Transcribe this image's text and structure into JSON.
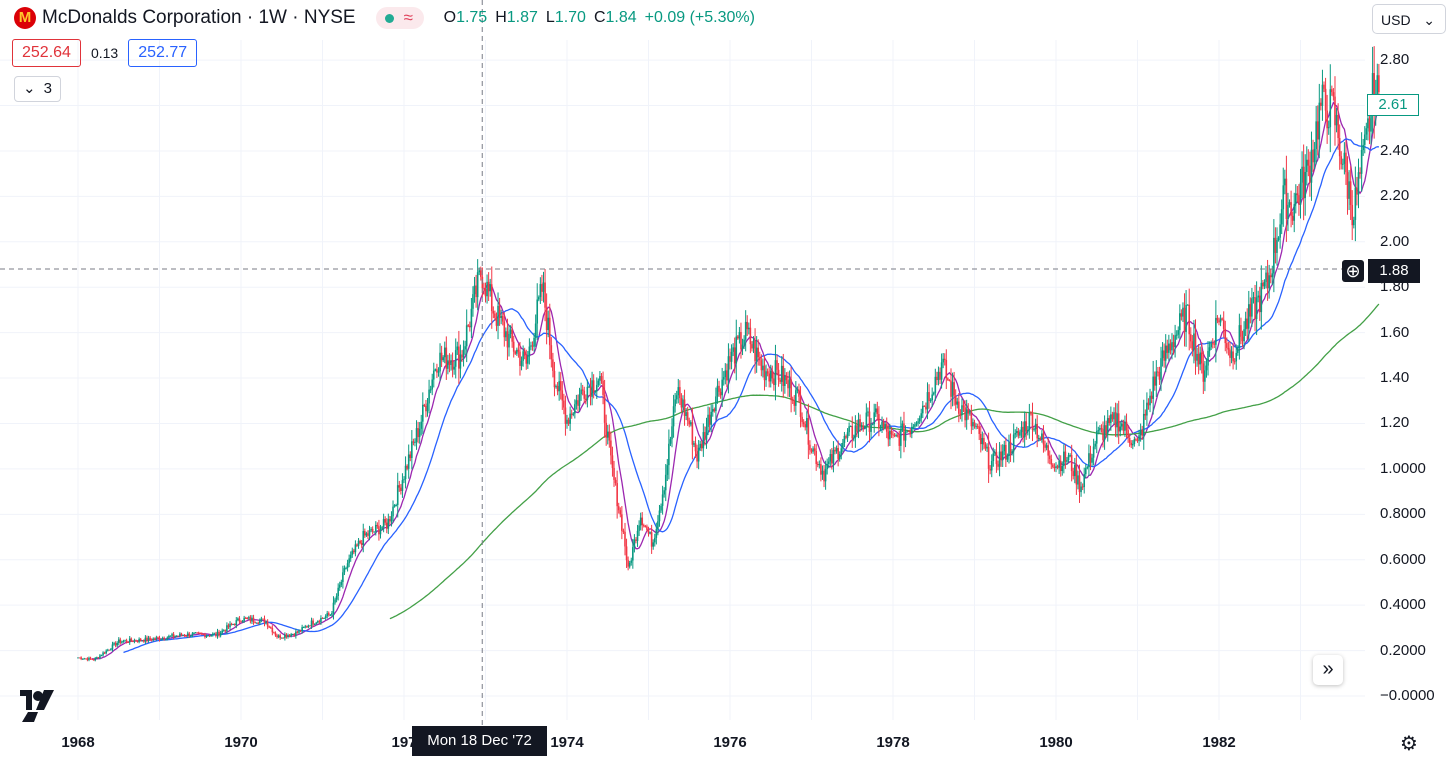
{
  "header": {
    "title": "McDonalds Corporation · 1W · NYSE",
    "ohlc": [
      {
        "k": "O",
        "v": "1.75"
      },
      {
        "k": "H",
        "v": "1.87"
      },
      {
        "k": "L",
        "v": "1.70"
      },
      {
        "k": "C",
        "v": "1.84"
      }
    ],
    "change": "+0.09 (+5.30%)",
    "currency": "USD",
    "indicator_box_1": "252.64",
    "indicator_value_mid": "0.13",
    "indicator_box_2": "252.77",
    "collapsed_count": "3"
  },
  "badges": {
    "current_price": "2.61",
    "crosshair_price": "1.88",
    "crosshair_date": "Mon 18 Dec '72"
  },
  "colors": {
    "up": "#089981",
    "down": "#f23645",
    "ma_fast": "#9c27b0",
    "ma_mid": "#2962ff",
    "ma_slow": "#43a047"
  },
  "chart_data": {
    "type": "candlestick",
    "y_ticks": [
      "2.80",
      "2.60",
      "2.40",
      "2.20",
      "2.00",
      "1.80",
      "1.60",
      "1.40",
      "1.20",
      "1.0000",
      "0.8000",
      "0.6000",
      "0.4000",
      "0.2000",
      "−0.0000"
    ],
    "y_tick_values": [
      2.8,
      2.6,
      2.4,
      2.2,
      2.0,
      1.8,
      1.6,
      1.4,
      1.2,
      1.0,
      0.8,
      0.6,
      0.4,
      0.2,
      0.0
    ],
    "x_ticks": [
      "1968",
      "1970",
      "197",
      "1974",
      "1976",
      "1978",
      "1980",
      "1982"
    ],
    "x_tick_years": [
      1968.0,
      1970.0,
      1972.0,
      1974.0,
      1976.0,
      1978.0,
      1980.0,
      1982.0
    ],
    "ylim": [
      -0.05,
      2.85
    ],
    "xlim": [
      1967.05,
      1983.6
    ],
    "grid": true,
    "crosshair": {
      "x": 1972.96,
      "y": 1.88
    },
    "price_path": [
      [
        1968.0,
        0.17
      ],
      [
        1968.2,
        0.16
      ],
      [
        1968.5,
        0.24
      ],
      [
        1968.9,
        0.25
      ],
      [
        1969.3,
        0.27
      ],
      [
        1969.7,
        0.27
      ],
      [
        1970.0,
        0.34
      ],
      [
        1970.3,
        0.33
      ],
      [
        1970.45,
        0.26
      ],
      [
        1970.7,
        0.28
      ],
      [
        1970.85,
        0.32
      ],
      [
        1971.1,
        0.36
      ],
      [
        1971.3,
        0.58
      ],
      [
        1971.5,
        0.7
      ],
      [
        1971.8,
        0.76
      ],
      [
        1972.0,
        0.98
      ],
      [
        1972.2,
        1.2
      ],
      [
        1972.4,
        1.48
      ],
      [
        1972.7,
        1.5
      ],
      [
        1972.95,
        1.87
      ],
      [
        1973.1,
        1.7
      ],
      [
        1973.3,
        1.56
      ],
      [
        1973.5,
        1.46
      ],
      [
        1973.7,
        1.8
      ],
      [
        1973.85,
        1.4
      ],
      [
        1974.0,
        1.22
      ],
      [
        1974.2,
        1.35
      ],
      [
        1974.4,
        1.4
      ],
      [
        1974.55,
        1.0
      ],
      [
        1974.7,
        0.7
      ],
      [
        1974.75,
        0.55
      ],
      [
        1974.9,
        0.8
      ],
      [
        1975.05,
        0.67
      ],
      [
        1975.2,
        0.95
      ],
      [
        1975.35,
        1.35
      ],
      [
        1975.5,
        1.2
      ],
      [
        1975.6,
        1.05
      ],
      [
        1975.8,
        1.3
      ],
      [
        1976.0,
        1.48
      ],
      [
        1976.2,
        1.6
      ],
      [
        1976.4,
        1.44
      ],
      [
        1976.6,
        1.42
      ],
      [
        1976.85,
        1.3
      ],
      [
        1977.0,
        1.1
      ],
      [
        1977.15,
        0.98
      ],
      [
        1977.35,
        1.1
      ],
      [
        1977.6,
        1.2
      ],
      [
        1977.8,
        1.22
      ],
      [
        1978.0,
        1.12
      ],
      [
        1978.2,
        1.18
      ],
      [
        1978.4,
        1.3
      ],
      [
        1978.6,
        1.46
      ],
      [
        1978.75,
        1.32
      ],
      [
        1979.0,
        1.18
      ],
      [
        1979.2,
        1.02
      ],
      [
        1979.4,
        1.08
      ],
      [
        1979.7,
        1.23
      ],
      [
        1979.85,
        1.1
      ],
      [
        1980.0,
        1.02
      ],
      [
        1980.15,
        1.05
      ],
      [
        1980.3,
        0.92
      ],
      [
        1980.5,
        1.14
      ],
      [
        1980.75,
        1.22
      ],
      [
        1981.0,
        1.1
      ],
      [
        1981.2,
        1.38
      ],
      [
        1981.4,
        1.55
      ],
      [
        1981.6,
        1.68
      ],
      [
        1981.8,
        1.42
      ],
      [
        1982.0,
        1.68
      ],
      [
        1982.15,
        1.5
      ],
      [
        1982.35,
        1.65
      ],
      [
        1982.6,
        1.82
      ],
      [
        1982.8,
        2.2
      ],
      [
        1982.9,
        2.15
      ],
      [
        1983.1,
        2.32
      ],
      [
        1983.25,
        2.6
      ],
      [
        1983.4,
        2.58
      ],
      [
        1983.55,
        2.3
      ],
      [
        1983.65,
        2.13
      ],
      [
        1983.8,
        2.42
      ],
      [
        1983.9,
        2.68
      ],
      [
        1983.98,
        2.61
      ]
    ],
    "series": [
      {
        "type": "ma",
        "color": "#9c27b0",
        "period_weeks": 10
      },
      {
        "type": "ma",
        "color": "#2962ff",
        "period_weeks": 30
      },
      {
        "type": "ma",
        "color": "#43a047",
        "period_weeks": 200
      }
    ]
  }
}
